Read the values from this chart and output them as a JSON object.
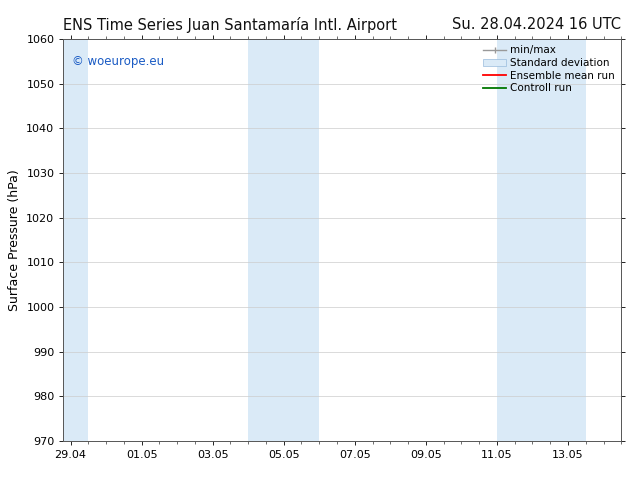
{
  "title_left": "ENS Time Series Juan Santamaría Intl. Airport",
  "title_right": "Su. 28.04.2024 16 UTC",
  "ylabel": "Surface Pressure (hPa)",
  "ylim": [
    970,
    1060
  ],
  "yticks": [
    970,
    980,
    990,
    1000,
    1010,
    1020,
    1030,
    1040,
    1050,
    1060
  ],
  "xtick_labels": [
    "29.04",
    "01.05",
    "03.05",
    "05.05",
    "07.05",
    "09.05",
    "11.05",
    "13.05"
  ],
  "xtick_days_from_start": [
    0,
    2,
    4,
    6,
    8,
    10,
    12,
    14
  ],
  "xlim_days": [
    -0.2,
    15.2
  ],
  "shaded_bands": [
    {
      "x_start": -0.2,
      "x_end": 0.5,
      "color": "#daeaf7"
    },
    {
      "x_start": 5.0,
      "x_end": 7.0,
      "color": "#daeaf7"
    },
    {
      "x_start": 12.0,
      "x_end": 14.5,
      "color": "#daeaf7"
    }
  ],
  "watermark_text": "© woeurope.eu",
  "watermark_color": "#1a5bc4",
  "legend_entries": [
    {
      "label": "min/max",
      "color": "#aaaaaa",
      "style": "errorbar"
    },
    {
      "label": "Standard deviation",
      "color": "#daeaf7",
      "style": "fill"
    },
    {
      "label": "Ensemble mean run",
      "color": "#ff0000",
      "style": "line"
    },
    {
      "label": "Controll run",
      "color": "#007700",
      "style": "line"
    }
  ],
  "bg_color": "#ffffff",
  "plot_bg_color": "#ffffff",
  "grid_color": "#cccccc",
  "title_fontsize": 10.5,
  "tick_fontsize": 8,
  "ylabel_fontsize": 9,
  "watermark_fontsize": 8.5,
  "legend_fontsize": 7.5
}
